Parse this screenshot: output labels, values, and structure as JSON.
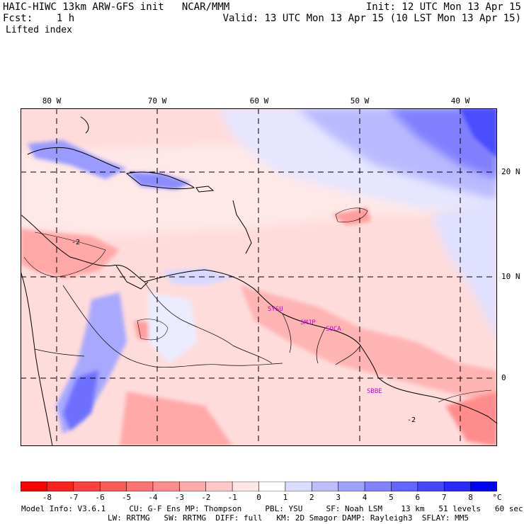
{
  "header": {
    "model": "HAIC-HIWC 13km ARW-GFS init   NCAR/MMM",
    "fcst": "Fcst:    1 h",
    "init": "Init: 12 UTC Mon 13 Apr 15",
    "valid": "Valid: 13 UTC Mon 13 Apr 15 (10 LST Mon 13 Apr 15)",
    "field": "Lifted index"
  },
  "map": {
    "longitude_labels": [
      "80 W",
      "70 W",
      "60 W",
      "50 W",
      "40 W"
    ],
    "latitude_labels": [
      "20 N",
      "10 N",
      "0"
    ],
    "stations": [
      "SYSU",
      "SMJP",
      "SOCA",
      "SBBE"
    ],
    "contour_labels": [
      "-2",
      "-2"
    ]
  },
  "colorbar": {
    "ticks": [
      "-8",
      "-7",
      "-6",
      "-5",
      "-4",
      "-3",
      "-2",
      "-1",
      "0",
      "1",
      "2",
      "3",
      "4",
      "5",
      "6",
      "7",
      "8"
    ],
    "unit": "°C",
    "colors": [
      "#ff0000",
      "#ff2020",
      "#ff4040",
      "#ff5a5a",
      "#ff7272",
      "#ff8c8c",
      "#ffaaaa",
      "#ffc8c8",
      "#ffe6e6",
      "#ffffff",
      "#dcdcff",
      "#bebeff",
      "#a0a0ff",
      "#8282ff",
      "#6464ff",
      "#4646ff",
      "#2828ff",
      "#0000ff"
    ]
  },
  "footer": {
    "line1": "Model Info: V3.6.1     CU: G-F Ens MP: Thompson     PBL: YSU     SF: Noah LSM    13 km   51 levels   60 sec",
    "line2": "LW: RRTMG   SW: RRTMG  DIFF: full   KM: 2D Smagor DAMP: Rayleigh3  SFLAY: MM5"
  }
}
